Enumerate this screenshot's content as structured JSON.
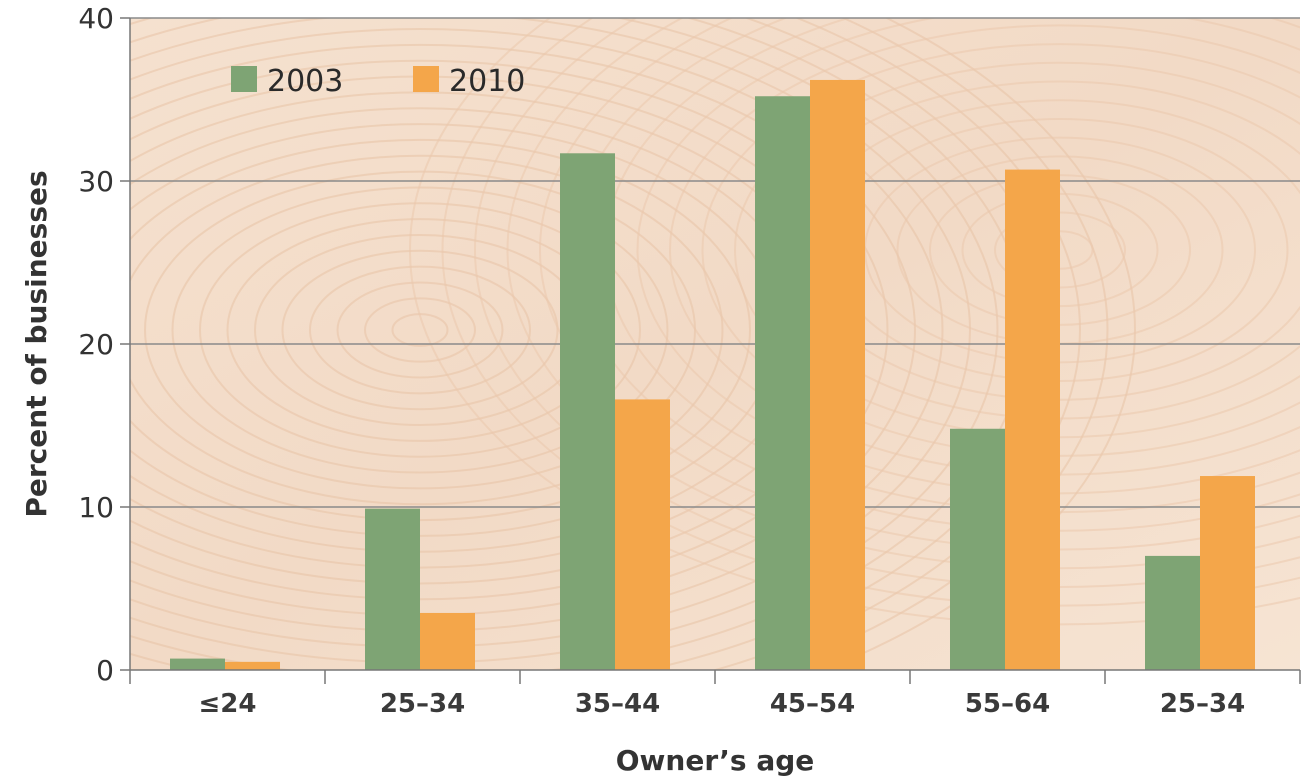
{
  "chart_data": {
    "type": "bar",
    "title": "",
    "xlabel": "Owner’s age",
    "ylabel": "Percent of businesses",
    "categories": [
      "≤24",
      "25–34",
      "35–44",
      "45–54",
      "55–64",
      "25–34"
    ],
    "series": [
      {
        "name": "2003",
        "color": "#7ea474",
        "values": [
          0.7,
          9.9,
          31.7,
          35.2,
          14.8,
          7.0
        ]
      },
      {
        "name": "2010",
        "color": "#f4a64a",
        "values": [
          0.5,
          3.5,
          16.6,
          36.2,
          30.7,
          11.9
        ]
      }
    ],
    "ylim": [
      0,
      40
    ],
    "yticks": [
      0,
      10,
      20,
      30,
      40
    ],
    "grid": true,
    "legend_position": "top-left",
    "background": "wood-grain"
  }
}
